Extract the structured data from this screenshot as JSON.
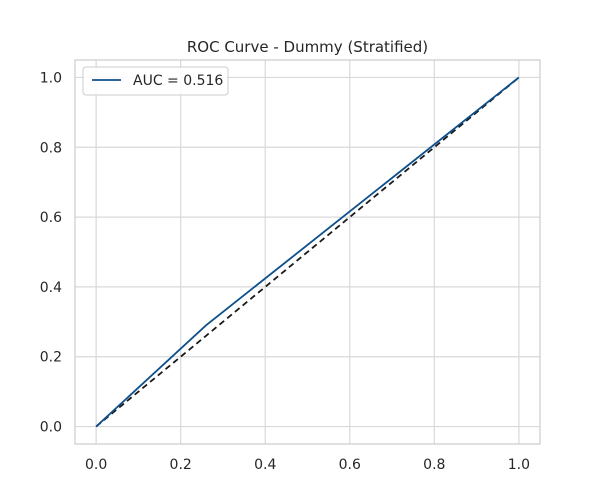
{
  "chart_data": {
    "type": "line",
    "title": "ROC Curve - Dummy (Stratified)",
    "xlabel": "",
    "ylabel": "",
    "xlim": [
      -0.05,
      1.05
    ],
    "ylim": [
      -0.05,
      1.05
    ],
    "x_ticks": [
      0.0,
      0.2,
      0.4,
      0.6,
      0.8,
      1.0
    ],
    "y_ticks": [
      0.0,
      0.2,
      0.4,
      0.6,
      0.8,
      1.0
    ],
    "x_tick_labels": [
      "0.0",
      "0.2",
      "0.4",
      "0.6",
      "0.8",
      "1.0"
    ],
    "y_tick_labels": [
      "0.0",
      "0.2",
      "0.4",
      "0.6",
      "0.8",
      "1.0"
    ],
    "grid": true,
    "legend_position": "top-left",
    "series": [
      {
        "name": "AUC = 0.516",
        "color": "#0d4f8b",
        "style": "solid",
        "x": [
          0.0,
          0.26,
          1.0
        ],
        "y": [
          0.0,
          0.29,
          1.0
        ]
      },
      {
        "color": "#1a1a1a",
        "style": "dashed",
        "x": [
          0.0,
          1.0
        ],
        "y": [
          0.0,
          1.0
        ]
      }
    ]
  }
}
